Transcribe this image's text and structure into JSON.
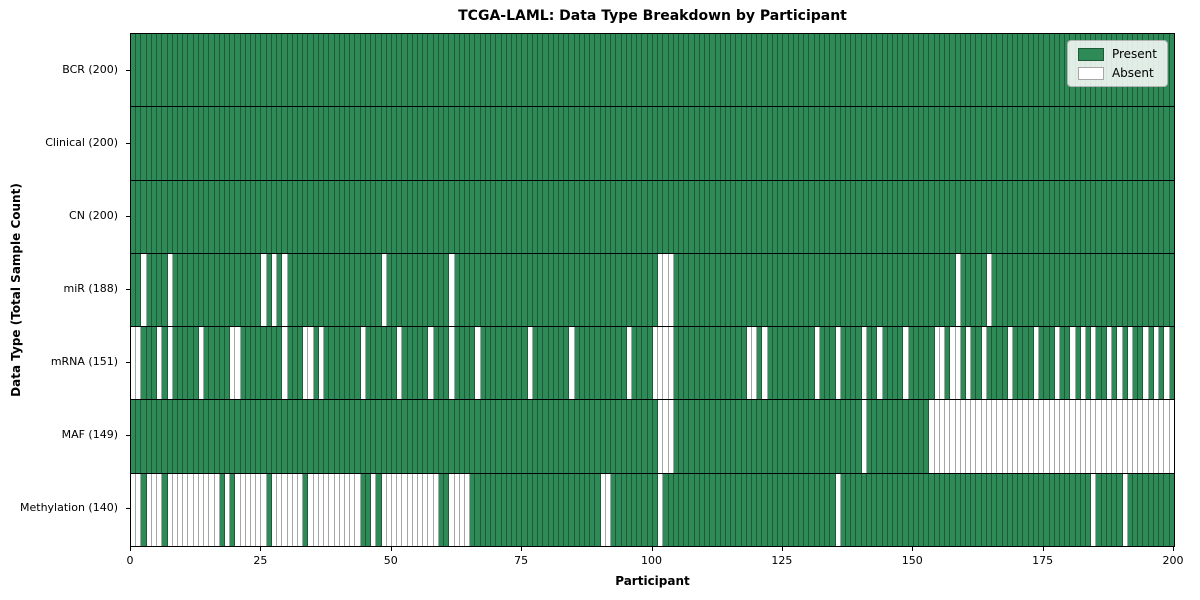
{
  "chart_data": {
    "type": "heatmap",
    "title": "TCGA-LAML: Data Type Breakdown by Participant",
    "xlabel": "Participant",
    "ylabel": "Data Type (Total Sample Count)",
    "x_domain": [
      0,
      200
    ],
    "x_ticks": [
      0,
      25,
      50,
      75,
      100,
      125,
      150,
      175,
      200
    ],
    "n_participants": 200,
    "grid": false,
    "legend_position": "upper right",
    "legend": [
      {
        "label": "Present",
        "color": "#2e8b57"
      },
      {
        "label": "Absent",
        "color": "#ffffff"
      }
    ],
    "colors": {
      "present": "#2e8b57",
      "absent": "#ffffff",
      "cell_border": "rgba(0,0,0,0.35)",
      "row_separator": "#000000",
      "plot_border": "#000000"
    },
    "rows": [
      {
        "label": "BCR (200)",
        "name": "BCR",
        "present_count": 200,
        "absent": []
      },
      {
        "label": "Clinical (200)",
        "name": "Clinical",
        "present_count": 200,
        "absent": []
      },
      {
        "label": "CN (200)",
        "name": "CN",
        "present_count": 200,
        "absent": []
      },
      {
        "label": "miR (188)",
        "name": "miR",
        "present_count": 188,
        "absent": [
          2,
          7,
          25,
          27,
          29,
          48,
          61,
          101,
          102,
          103,
          158,
          164
        ]
      },
      {
        "label": "mRNA (151)",
        "name": "mRNA",
        "present_count": 151,
        "absent": [
          0,
          1,
          5,
          7,
          13,
          19,
          20,
          29,
          33,
          34,
          36,
          44,
          51,
          57,
          61,
          66,
          76,
          84,
          95,
          100,
          101,
          102,
          103,
          118,
          119,
          121,
          131,
          135,
          140,
          143,
          148,
          154,
          155,
          157,
          158,
          160,
          163,
          168,
          173,
          177,
          180,
          182,
          184,
          187,
          189,
          191,
          194,
          196,
          198
        ]
      },
      {
        "label": "MAF (149)",
        "name": "MAF",
        "present_count": 149,
        "absent": [
          101,
          102,
          103,
          140,
          153,
          154,
          155,
          156,
          157,
          158,
          159,
          160,
          161,
          162,
          163,
          164,
          165,
          166,
          167,
          168,
          169,
          170,
          171,
          172,
          173,
          174,
          175,
          176,
          177,
          178,
          179,
          180,
          181,
          182,
          183,
          184,
          185,
          186,
          187,
          188,
          189,
          190,
          191,
          192,
          193,
          194,
          195,
          196,
          197,
          198,
          199
        ]
      },
      {
        "label": "Methylation (140)",
        "name": "Methylation",
        "present_count": 140,
        "absent": [
          0,
          1,
          3,
          4,
          5,
          7,
          8,
          9,
          10,
          11,
          12,
          13,
          14,
          15,
          16,
          18,
          20,
          21,
          22,
          23,
          24,
          25,
          27,
          28,
          29,
          30,
          31,
          32,
          34,
          35,
          36,
          37,
          38,
          39,
          40,
          41,
          42,
          43,
          46,
          48,
          49,
          50,
          51,
          52,
          53,
          54,
          55,
          56,
          57,
          58,
          61,
          62,
          63,
          64,
          90,
          91,
          101,
          135,
          184,
          190
        ]
      }
    ]
  }
}
